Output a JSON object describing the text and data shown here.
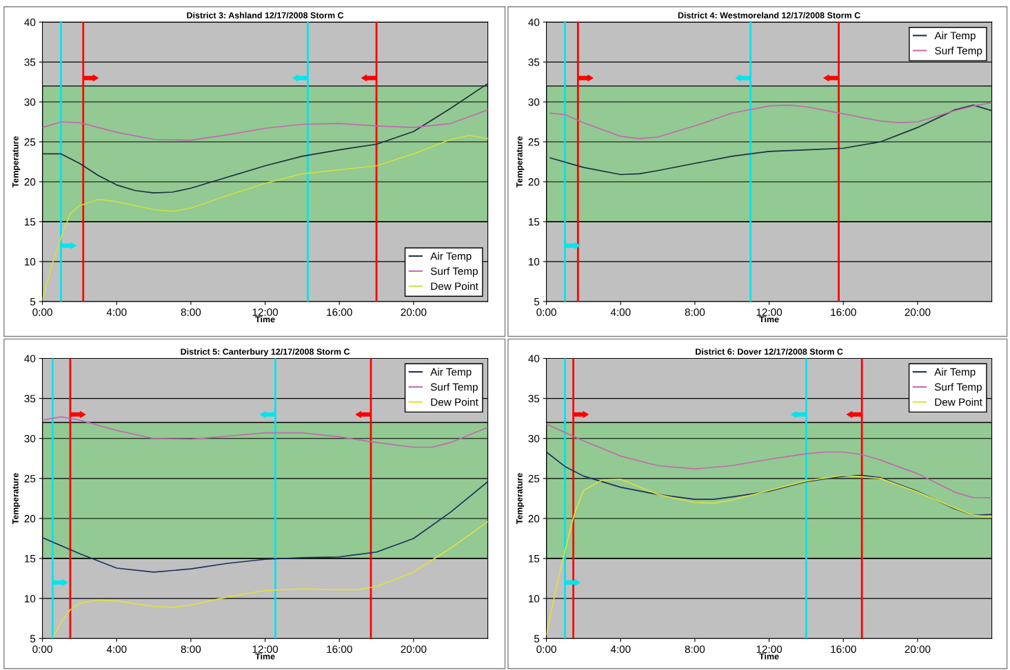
{
  "chart_data": [
    {
      "type": "line",
      "title": "District 3: Ashland 12/17/2008 Storm C",
      "xlabel": "Time",
      "ylabel": "Temperature",
      "xlim": [
        0,
        24
      ],
      "xticks": [
        {
          "value": 0,
          "label": "0:00"
        },
        {
          "value": 4,
          "label": "4:00"
        },
        {
          "value": 8,
          "label": "8:00"
        },
        {
          "value": 12,
          "label": "12:00"
        },
        {
          "value": 16,
          "label": "16:00"
        },
        {
          "value": 20,
          "label": "20:00"
        }
      ],
      "ylim": [
        5,
        40
      ],
      "yticks": [
        5,
        10,
        15,
        20,
        25,
        30,
        35,
        40
      ],
      "grid": "y",
      "legend": "lower right",
      "bands": [
        {
          "axis": "y",
          "from": 15,
          "to": 32,
          "color": "#93c993"
        }
      ],
      "ref_lines": [
        {
          "axis": "x",
          "value": 1.0,
          "color": "#00e5ee"
        },
        {
          "axis": "x",
          "value": 2.2,
          "color": "#ff0000"
        },
        {
          "axis": "x",
          "value": 14.3,
          "color": "#00e5ee"
        },
        {
          "axis": "x",
          "value": 18.0,
          "color": "#ff0000"
        }
      ],
      "series": [
        {
          "name": "Air Temp",
          "color": "#1c2f3f",
          "x": [
            0,
            1,
            2,
            3,
            4,
            5,
            6,
            7,
            8,
            10,
            12,
            14,
            16,
            18,
            20,
            22,
            24
          ],
          "values": [
            23.5,
            23.5,
            22.3,
            20.8,
            19.6,
            18.9,
            18.6,
            18.7,
            19.2,
            20.6,
            22.0,
            23.2,
            24.0,
            24.7,
            26.3,
            29.2,
            32.3
          ]
        },
        {
          "name": "Surf Temp",
          "color": "#c06ab0",
          "x": [
            0,
            1,
            2,
            4,
            6,
            8,
            10,
            12,
            14,
            16,
            18,
            20,
            22,
            24
          ],
          "values": [
            26.8,
            27.5,
            27.4,
            26.2,
            25.3,
            25.2,
            25.9,
            26.7,
            27.2,
            27.3,
            27.0,
            26.8,
            27.3,
            29.0
          ]
        },
        {
          "name": "Dew Point",
          "color": "#d0e040",
          "x": [
            0,
            0.5,
            1,
            1.5,
            2,
            3,
            4,
            6,
            7,
            8,
            10,
            12,
            14,
            16,
            18,
            20,
            22,
            23,
            24
          ],
          "values": [
            5.2,
            9.5,
            13.0,
            16.0,
            17.0,
            17.8,
            17.5,
            16.5,
            16.3,
            16.7,
            18.3,
            19.8,
            21.0,
            21.5,
            22.0,
            23.5,
            25.3,
            25.8,
            25.4
          ]
        }
      ]
    },
    {
      "type": "line",
      "title": "District 4: Westmoreland 12/17/2008 Storm C",
      "xlabel": "Time",
      "ylabel": "Temperature",
      "xlim": [
        0,
        24
      ],
      "xticks": [
        {
          "value": 0,
          "label": "0:00"
        },
        {
          "value": 4,
          "label": "4:00"
        },
        {
          "value": 8,
          "label": "8:00"
        },
        {
          "value": 12,
          "label": "12:00"
        },
        {
          "value": 16,
          "label": "16:00"
        },
        {
          "value": 20,
          "label": "20:00"
        }
      ],
      "ylim": [
        5,
        40
      ],
      "yticks": [
        5,
        10,
        15,
        20,
        25,
        30,
        35,
        40
      ],
      "grid": "y",
      "legend": "upper right",
      "bands": [
        {
          "axis": "y",
          "from": 15,
          "to": 32,
          "color": "#93c993"
        }
      ],
      "ref_lines": [
        {
          "axis": "x",
          "value": 1.0,
          "color": "#00e5ee"
        },
        {
          "axis": "x",
          "value": 1.7,
          "color": "#ff0000"
        },
        {
          "axis": "x",
          "value": 11.0,
          "color": "#00e5ee"
        },
        {
          "axis": "x",
          "value": 15.75,
          "color": "#ff0000"
        }
      ],
      "series": [
        {
          "name": "Air Temp",
          "color": "#1c2f3f",
          "x": [
            0.2,
            2,
            4,
            5,
            6,
            8,
            10,
            12,
            14,
            16,
            18,
            20,
            22,
            23,
            24
          ],
          "values": [
            23.0,
            21.8,
            20.9,
            21.0,
            21.4,
            22.3,
            23.2,
            23.8,
            24.0,
            24.2,
            25.0,
            26.8,
            29.0,
            29.6,
            28.9
          ]
        },
        {
          "name": "Surf Temp",
          "color": "#c06ab0",
          "x": [
            0.2,
            1,
            2,
            4,
            5,
            6,
            8,
            10,
            12,
            13,
            14,
            16,
            18,
            19,
            20,
            22,
            23,
            24
          ],
          "values": [
            28.6,
            28.4,
            27.4,
            25.7,
            25.4,
            25.6,
            27.0,
            28.6,
            29.5,
            29.6,
            29.4,
            28.5,
            27.6,
            27.4,
            27.5,
            28.9,
            29.5,
            29.9
          ]
        }
      ]
    },
    {
      "type": "line",
      "title": "District 5: Canterbury 12/17/2008 Storm C",
      "xlabel": "Time",
      "ylabel": "Temperature",
      "xlim": [
        0,
        24
      ],
      "xticks": [
        {
          "value": 0,
          "label": "0:00"
        },
        {
          "value": 4,
          "label": "4:00"
        },
        {
          "value": 8,
          "label": "8:00"
        },
        {
          "value": 12,
          "label": "12:00"
        },
        {
          "value": 16,
          "label": "16:00"
        },
        {
          "value": 20,
          "label": "20:00"
        }
      ],
      "ylim": [
        5,
        40
      ],
      "yticks": [
        5,
        10,
        15,
        20,
        25,
        30,
        35,
        40
      ],
      "grid": "y",
      "legend": "upper right",
      "bands": [
        {
          "axis": "y",
          "from": 15,
          "to": 32,
          "color": "#93c993"
        }
      ],
      "ref_lines": [
        {
          "axis": "x",
          "value": 0.55,
          "color": "#00e5ee"
        },
        {
          "axis": "x",
          "value": 1.5,
          "color": "#ff0000"
        },
        {
          "axis": "x",
          "value": 12.55,
          "color": "#00e5ee"
        },
        {
          "axis": "x",
          "value": 17.7,
          "color": "#ff0000"
        }
      ],
      "series": [
        {
          "name": "Air Temp",
          "color": "#1c2f5f",
          "x": [
            0,
            2,
            4,
            6,
            8,
            10,
            12,
            14,
            16,
            18,
            20,
            22,
            24
          ],
          "values": [
            17.6,
            15.6,
            13.8,
            13.3,
            13.7,
            14.4,
            14.9,
            15.1,
            15.2,
            15.8,
            17.5,
            20.8,
            24.6
          ]
        },
        {
          "name": "Surf Temp",
          "color": "#c06ab0",
          "x": [
            0,
            1,
            2,
            4,
            6,
            8,
            10,
            12,
            14,
            16,
            18,
            20,
            21,
            22,
            24
          ],
          "values": [
            32.3,
            32.7,
            32.3,
            31.0,
            30.0,
            29.9,
            30.3,
            30.7,
            30.7,
            30.2,
            29.5,
            28.9,
            28.9,
            29.5,
            31.4
          ]
        },
        {
          "name": "Dew Point",
          "color": "#e0e040",
          "x": [
            0.6,
            1,
            1.5,
            2,
            3,
            4,
            6,
            7,
            8,
            10,
            12,
            14,
            16,
            17,
            18,
            20,
            22,
            24
          ],
          "values": [
            5.3,
            7.0,
            8.6,
            9.4,
            9.8,
            9.7,
            9.0,
            8.9,
            9.2,
            10.2,
            11.0,
            11.2,
            11.1,
            11.1,
            11.5,
            13.3,
            16.3,
            19.6
          ]
        }
      ]
    },
    {
      "type": "line",
      "title": "District 6: Dover 12/17/2008 Storm C",
      "xlabel": "Time",
      "ylabel": "Temperature",
      "xlim": [
        0,
        24
      ],
      "xticks": [
        {
          "value": 0,
          "label": "0:00"
        },
        {
          "value": 4,
          "label": "4:00"
        },
        {
          "value": 8,
          "label": "8:00"
        },
        {
          "value": 12,
          "label": "12:00"
        },
        {
          "value": 16,
          "label": "16:00"
        },
        {
          "value": 20,
          "label": "20:00"
        }
      ],
      "ylim": [
        5,
        40
      ],
      "yticks": [
        5,
        10,
        15,
        20,
        25,
        30,
        35,
        40
      ],
      "grid": "y",
      "legend": "upper right",
      "bands": [
        {
          "axis": "y",
          "from": 15,
          "to": 32,
          "color": "#93c993"
        }
      ],
      "ref_lines": [
        {
          "axis": "x",
          "value": 1.0,
          "color": "#00e5ee"
        },
        {
          "axis": "x",
          "value": 1.45,
          "color": "#ff0000"
        },
        {
          "axis": "x",
          "value": 14.0,
          "color": "#00e5ee"
        },
        {
          "axis": "x",
          "value": 17.0,
          "color": "#ff0000"
        }
      ],
      "series": [
        {
          "name": "Air Temp",
          "color": "#1c2f5f",
          "x": [
            0,
            1,
            2,
            4,
            6,
            8,
            9,
            10,
            12,
            14,
            16,
            17,
            18,
            20,
            22,
            23,
            24
          ],
          "values": [
            28.3,
            26.5,
            25.3,
            23.9,
            23.0,
            22.4,
            22.4,
            22.7,
            23.4,
            24.6,
            25.3,
            25.4,
            25.1,
            23.4,
            21.2,
            20.4,
            20.5
          ]
        },
        {
          "name": "Surf Temp",
          "color": "#c06ab0",
          "x": [
            0,
            2,
            4,
            6,
            8,
            10,
            12,
            14,
            15,
            16,
            17,
            18,
            20,
            22,
            23,
            24
          ],
          "values": [
            31.8,
            29.7,
            27.8,
            26.6,
            26.2,
            26.6,
            27.4,
            28.1,
            28.3,
            28.3,
            28.0,
            27.3,
            25.6,
            23.3,
            22.6,
            22.6
          ]
        },
        {
          "name": "Dew Point",
          "color": "#e0e040",
          "x": [
            0,
            0.5,
            1,
            1.5,
            2,
            3,
            4,
            6,
            8,
            9,
            10,
            12,
            14,
            16,
            18,
            20,
            22,
            23,
            24
          ],
          "values": [
            5.5,
            11.0,
            16.0,
            20.5,
            23.5,
            24.8,
            24.9,
            23.0,
            22.0,
            21.9,
            22.3,
            23.5,
            24.7,
            25.4,
            25.0,
            23.3,
            21.3,
            20.4,
            20.2
          ]
        }
      ]
    }
  ]
}
